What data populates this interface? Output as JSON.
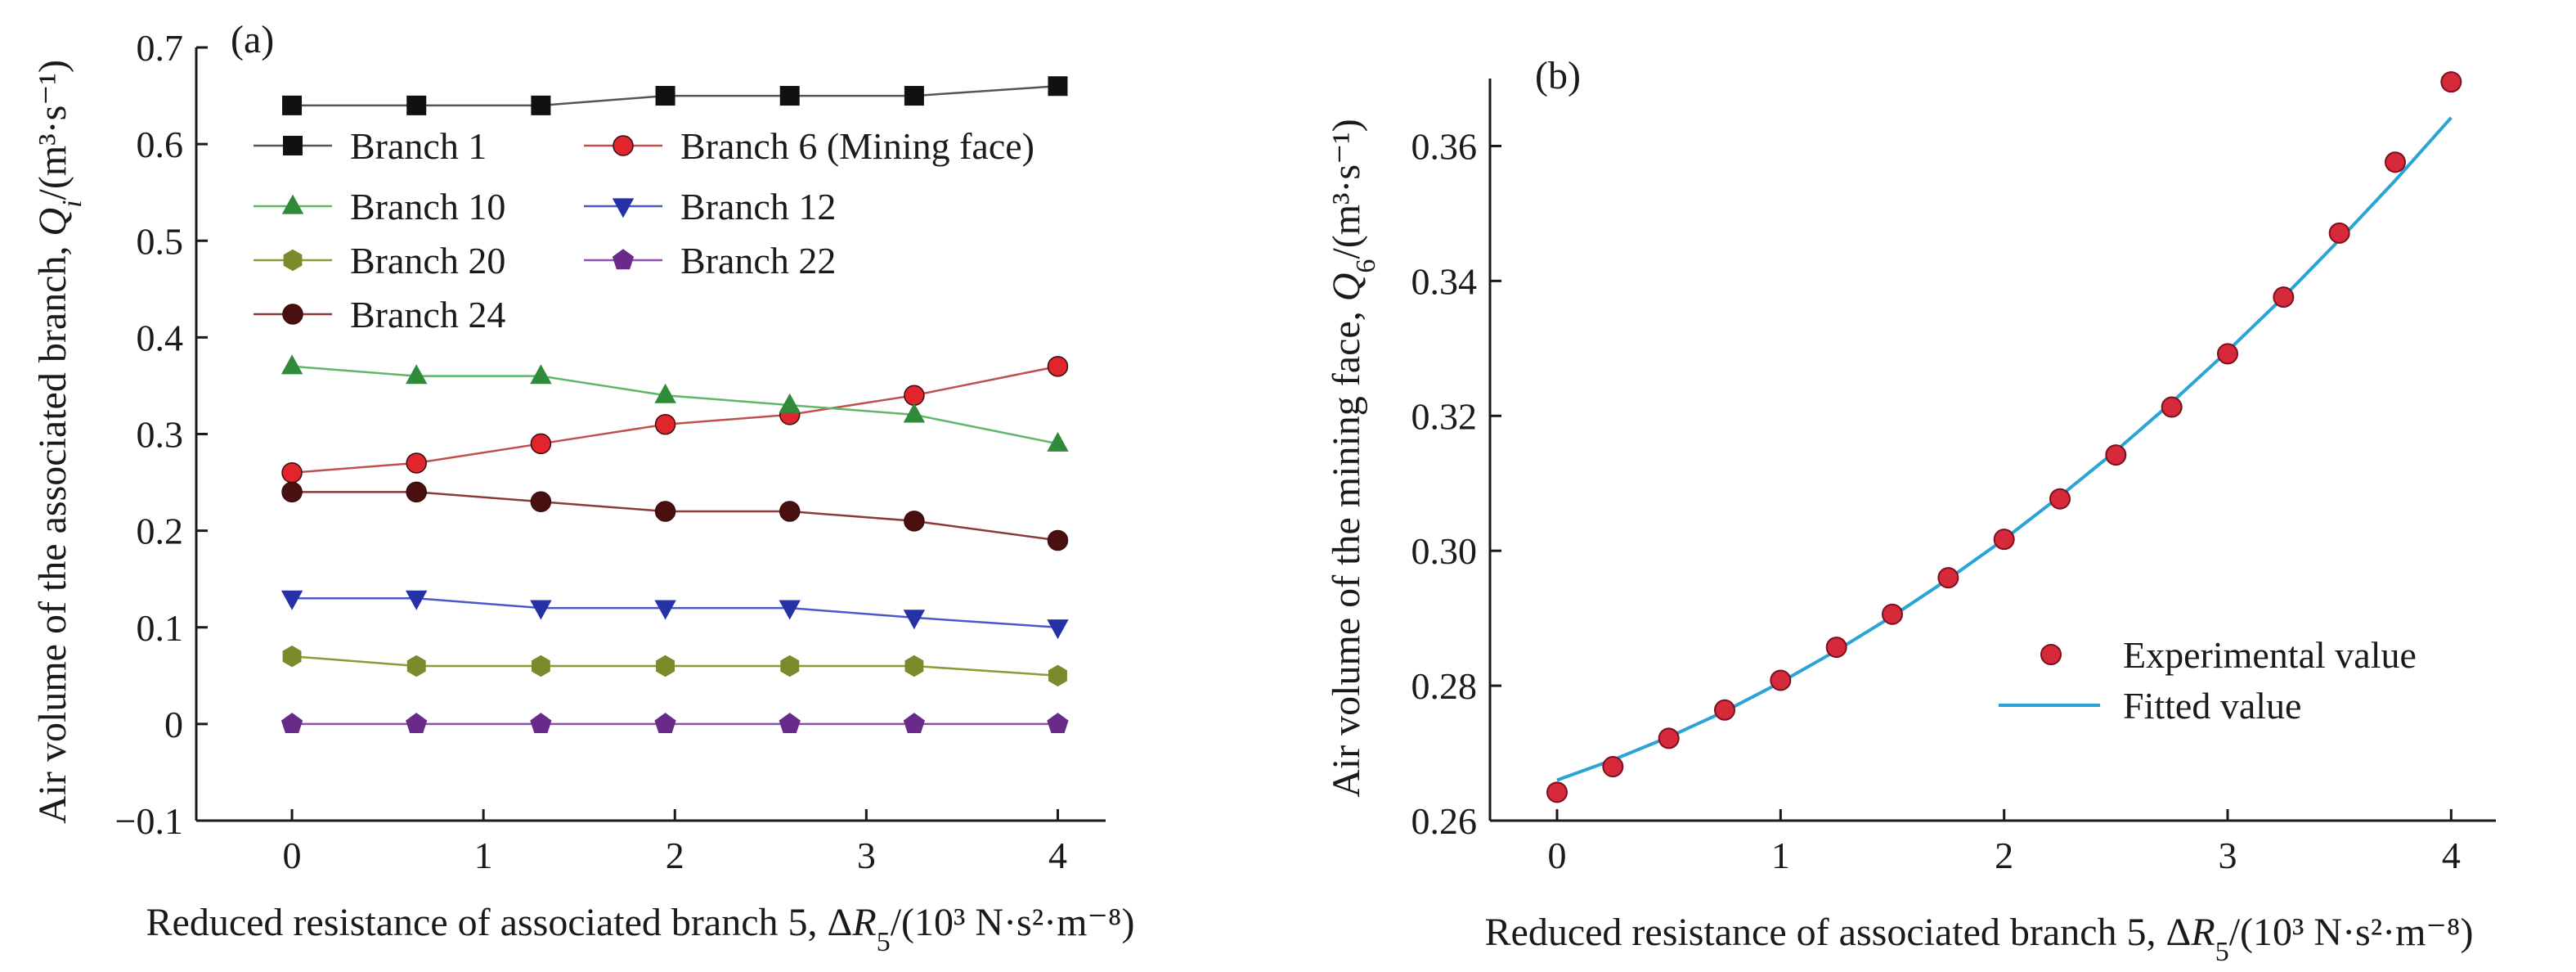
{
  "chart_data": [
    {
      "panel_label": "(a)",
      "type": "line",
      "x": [
        0,
        0.65,
        1.3,
        1.95,
        2.6,
        3.25,
        4.0
      ],
      "xlim": [
        -0.5,
        4.25
      ],
      "ylim": [
        -0.1,
        0.7
      ],
      "xticks": [
        0,
        1,
        2,
        3,
        4
      ],
      "xtick_labels": [
        "0",
        "1",
        "2",
        "3",
        "4"
      ],
      "yticks": [
        -0.1,
        0,
        0.1,
        0.2,
        0.3,
        0.4,
        0.5,
        0.6,
        0.7
      ],
      "ytick_labels": [
        "−0.1",
        "0",
        "0.1",
        "0.2",
        "0.3",
        "0.4",
        "0.5",
        "0.6",
        "0.7"
      ],
      "xlabel": {
        "pre": "Reduced resistance of associated branch 5, Δ",
        "var": "R",
        "sub": "5",
        "unit": "/(10³ N·s²·m⁻⁸)"
      },
      "ylabel": {
        "pre": "Air volume of the associated branch, ",
        "var": "Q",
        "sub": "i",
        "unit": "/(m³·s⁻¹)"
      },
      "grid": false,
      "legend_position": "top-left, two columns",
      "series": [
        {
          "name": "Branch 1",
          "marker": "square",
          "color": "#111111",
          "line_color": "#555555",
          "values": [
            0.64,
            0.64,
            0.64,
            0.65,
            0.65,
            0.65,
            0.66
          ]
        },
        {
          "name": "Branch 6 (Mining face)",
          "marker": "circle",
          "color": "#e0252c",
          "line_color": "#c0504d",
          "values": [
            0.26,
            0.27,
            0.29,
            0.31,
            0.32,
            0.34,
            0.37
          ]
        },
        {
          "name": "Branch 10",
          "marker": "triangle-up",
          "color": "#2f8a3a",
          "line_color": "#5fb76a",
          "values": [
            0.37,
            0.36,
            0.36,
            0.34,
            0.33,
            0.32,
            0.29
          ]
        },
        {
          "name": "Branch 12",
          "marker": "triangle-down",
          "color": "#2532a6",
          "line_color": "#4b56c8",
          "values": [
            0.13,
            0.13,
            0.12,
            0.12,
            0.12,
            0.11,
            0.1
          ]
        },
        {
          "name": "Branch 20",
          "marker": "hexagon",
          "color": "#7b8a2a",
          "line_color": "#8b9a3a",
          "values": [
            0.07,
            0.06,
            0.06,
            0.06,
            0.06,
            0.06,
            0.05
          ]
        },
        {
          "name": "Branch 22",
          "marker": "pentagon",
          "color": "#6a2a8a",
          "line_color": "#8b52b0",
          "values": [
            0,
            0,
            0,
            0,
            0,
            0,
            0
          ]
        },
        {
          "name": "Branch 24",
          "marker": "circle",
          "color": "#4a1010",
          "line_color": "#8b3a3a",
          "values": [
            0.24,
            0.24,
            0.23,
            0.22,
            0.22,
            0.21,
            0.19
          ]
        }
      ]
    },
    {
      "panel_label": "(b)",
      "type": "scatter",
      "x": [
        0,
        0.25,
        0.5,
        0.75,
        1.0,
        1.25,
        1.5,
        1.75,
        2.0,
        2.25,
        2.5,
        2.75,
        3.0,
        3.25,
        3.5,
        3.75,
        4.0
      ],
      "xlim": [
        -0.3,
        4.2
      ],
      "ylim": [
        0.26,
        0.37
      ],
      "xticks": [
        0,
        1,
        2,
        3,
        4
      ],
      "xtick_labels": [
        "0",
        "1",
        "2",
        "3",
        "4"
      ],
      "yticks": [
        0.26,
        0.28,
        0.3,
        0.32,
        0.34,
        0.36
      ],
      "ytick_labels": [
        "0.26",
        "0.28",
        "0.30",
        "0.32",
        "0.34",
        "0.36"
      ],
      "xlabel": {
        "pre": "Reduced resistance of associated branch 5, Δ",
        "var": "R",
        "sub": "5",
        "unit": "/(10³ N·s²·m⁻⁸)"
      },
      "ylabel": {
        "pre": "Air volume of the mining face, ",
        "var": "Q",
        "sub": "6",
        "unit": "/(m³·s⁻¹)"
      },
      "grid": false,
      "legend_position": "bottom-right",
      "series": [
        {
          "name": "Experimental value",
          "kind": "points",
          "color": "#d62a3a",
          "values": [
            0.2642,
            0.268,
            0.2722,
            0.2764,
            0.2808,
            0.2857,
            0.2906,
            0.296,
            0.3017,
            0.3077,
            0.3142,
            0.3213,
            0.3292,
            0.3376,
            0.3471,
            0.3576,
            0.3695
          ]
        },
        {
          "name": "Fitted value",
          "kind": "line",
          "color": "#2aa3d6",
          "values": [
            0.266,
            0.269,
            0.2724,
            0.2762,
            0.2805,
            0.2852,
            0.2903,
            0.2958,
            0.3017,
            0.3081,
            0.3148,
            0.322,
            0.3296,
            0.3376,
            0.3461,
            0.3549,
            0.3642
          ]
        }
      ]
    }
  ]
}
